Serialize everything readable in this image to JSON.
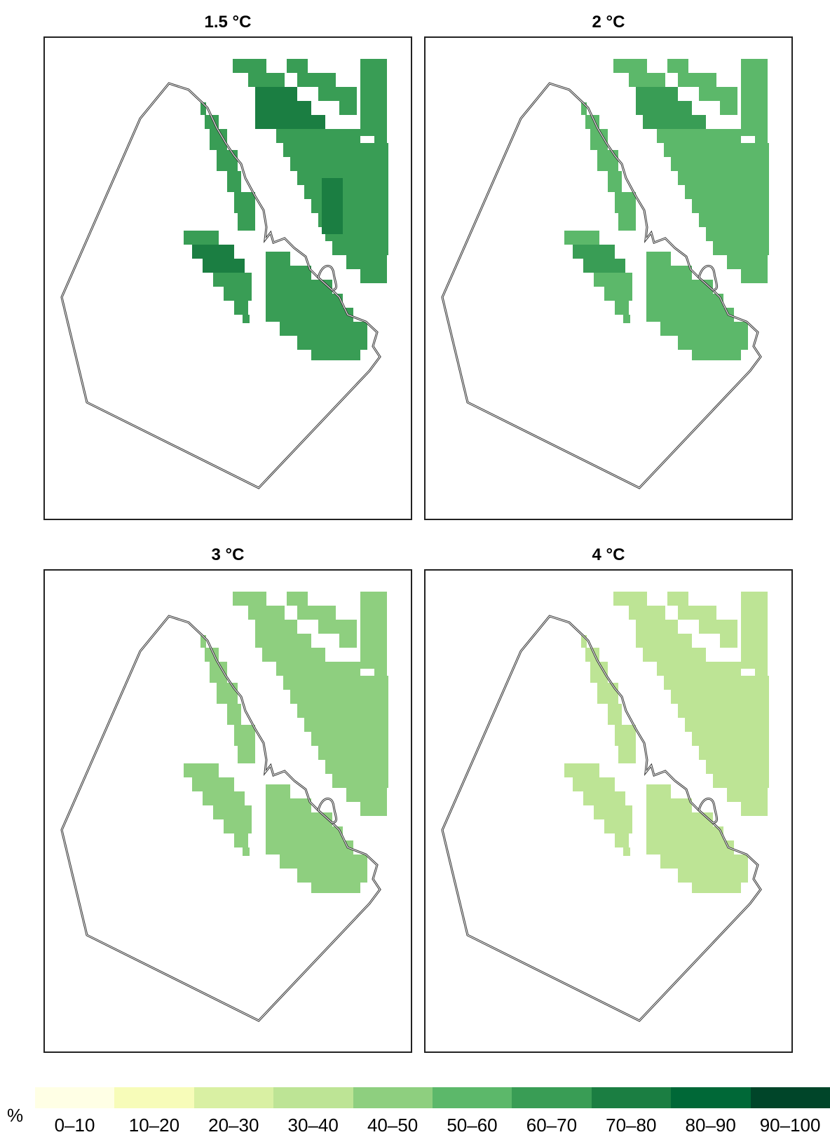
{
  "panels": [
    {
      "title": "1.5 °C",
      "shade_index": 6
    },
    {
      "title": "2 °C",
      "shade_index": 5
    },
    {
      "title": "3 °C",
      "shade_index": 4
    },
    {
      "title": "4 °C",
      "shade_index": 3
    }
  ],
  "legend": {
    "unit": "%",
    "classes": [
      {
        "label": "0–10",
        "color": "#ffffe5"
      },
      {
        "label": "10–20",
        "color": "#f7fcb9"
      },
      {
        "label": "20–30",
        "color": "#d9f0a3"
      },
      {
        "label": "30–40",
        "color": "#bde495"
      },
      {
        "label": "40–50",
        "color": "#8ecf7f"
      },
      {
        "label": "50–60",
        "color": "#5cb86a"
      },
      {
        "label": "60–70",
        "color": "#399d55"
      },
      {
        "label": "70–80",
        "color": "#1b7e42"
      },
      {
        "label": "80–90",
        "color": "#006837"
      },
      {
        "label": "90–100",
        "color": "#004529"
      }
    ]
  }
}
